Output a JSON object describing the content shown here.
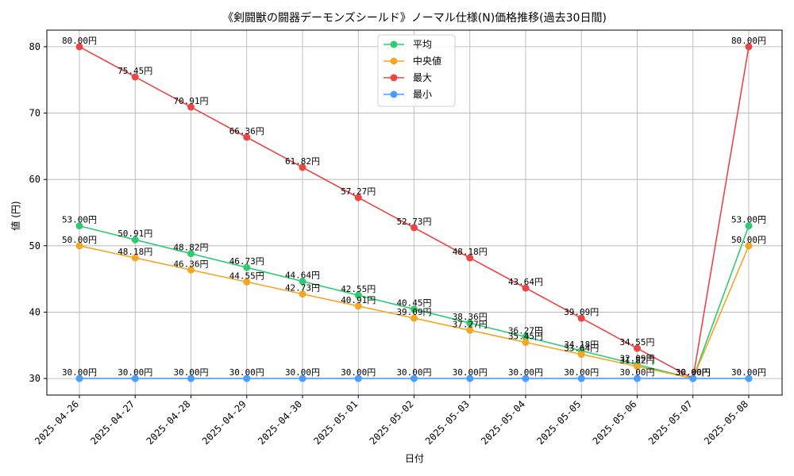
{
  "chart_data": {
    "type": "line",
    "title": "《剣闘獣の闘器デーモンズシールド》ノーマル仕様(N)価格推移(過去30日間)",
    "xlabel": "日付",
    "ylabel": "値 (円)",
    "ylim": [
      27.5,
      82.5
    ],
    "yticks": [
      30,
      40,
      50,
      60,
      70,
      80
    ],
    "grid": true,
    "legend_position": "top-center",
    "label_suffix": "円",
    "categories": [
      "2025-04-26",
      "2025-04-27",
      "2025-04-28",
      "2025-04-29",
      "2025-04-30",
      "2025-05-01",
      "2025-05-02",
      "2025-05-03",
      "2025-05-04",
      "2025-05-05",
      "2025-05-06",
      "2025-05-07",
      "2025-05-08"
    ],
    "series": [
      {
        "name": "平均",
        "color": "#2ecc71",
        "values": [
          53.0,
          50.91,
          48.82,
          46.73,
          44.64,
          42.55,
          40.45,
          38.36,
          36.27,
          34.18,
          32.09,
          30.0,
          53.0
        ]
      },
      {
        "name": "中央値",
        "color": "#f5a623",
        "values": [
          50.0,
          48.18,
          46.36,
          44.55,
          42.73,
          40.91,
          39.09,
          37.27,
          35.45,
          33.64,
          31.82,
          30.0,
          50.0
        ]
      },
      {
        "name": "最大",
        "color": "#ef4444",
        "values": [
          80.0,
          75.45,
          70.91,
          66.36,
          61.82,
          57.27,
          52.73,
          48.18,
          43.64,
          39.09,
          34.55,
          30.0,
          80.0
        ]
      },
      {
        "name": "最小",
        "color": "#4a9eff",
        "values": [
          30.0,
          30.0,
          30.0,
          30.0,
          30.0,
          30.0,
          30.0,
          30.0,
          30.0,
          30.0,
          30.0,
          30.0,
          30.0
        ]
      }
    ]
  }
}
